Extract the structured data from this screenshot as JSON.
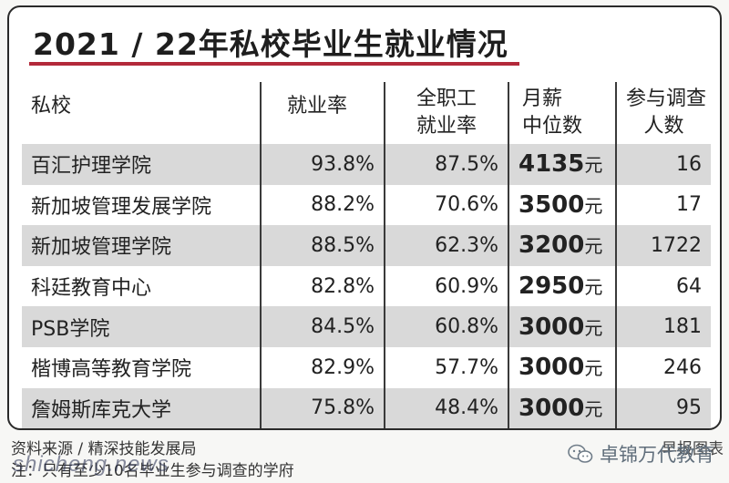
{
  "title": "2021 / 22年私校毕业生就业情况",
  "colors": {
    "accent_rule": "#b3293a",
    "shade_row": "#d9d9d9"
  },
  "table": {
    "headers": [
      [
        "私校"
      ],
      [
        "就业率"
      ],
      [
        "全职工",
        "就业率"
      ],
      [
        "月薪",
        "中位数"
      ],
      [
        "参与调查",
        "人数"
      ]
    ],
    "rows": [
      {
        "school": "百汇护理学院",
        "rate": "93.8%",
        "fulltime": "87.5%",
        "salary": "4135",
        "unit": "元",
        "count": "16"
      },
      {
        "school": "新加坡管理发展学院",
        "rate": "88.2%",
        "fulltime": "70.6%",
        "salary": "3500",
        "unit": "元",
        "count": "17"
      },
      {
        "school": "新加坡管理学院",
        "rate": "88.5%",
        "fulltime": "62.3%",
        "salary": "3200",
        "unit": "元",
        "count": "1722"
      },
      {
        "school": "科廷教育中心",
        "rate": "82.8%",
        "fulltime": "60.9%",
        "salary": "2950",
        "unit": "元",
        "count": "64"
      },
      {
        "school": "PSB学院",
        "rate": "84.5%",
        "fulltime": "60.8%",
        "salary": "3000",
        "unit": "元",
        "count": "181"
      },
      {
        "school": "楷博高等教育学院",
        "rate": "82.9%",
        "fulltime": "57.7%",
        "salary": "3000",
        "unit": "元",
        "count": "246"
      },
      {
        "school": "詹姆斯库克大学",
        "rate": "75.8%",
        "fulltime": "48.4%",
        "salary": "3000",
        "unit": "元",
        "count": "95"
      }
    ]
  },
  "footer": {
    "source": "资料来源 / 精深技能发展局",
    "note": "注：只有至少10名毕业生参与调查的学府",
    "credit": "早报图表"
  },
  "watermarks": {
    "brand": "卓锦万代教育",
    "site": "shicheng.news",
    "brand_icon": "wechat-icon"
  }
}
